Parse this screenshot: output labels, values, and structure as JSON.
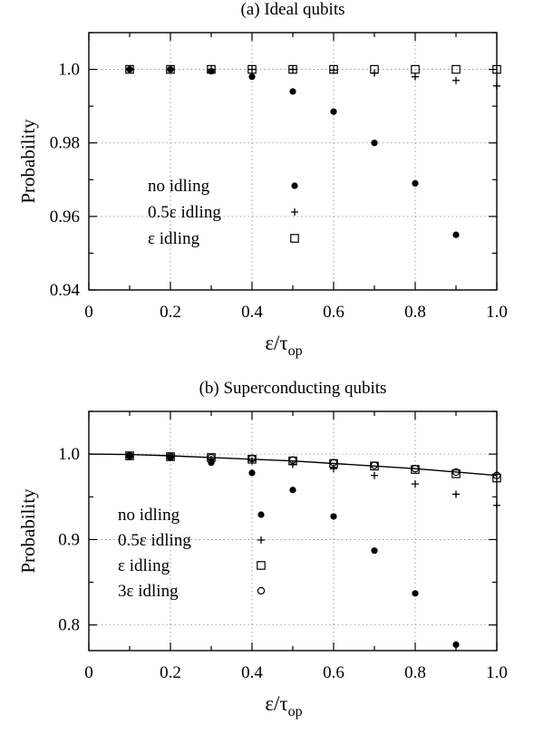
{
  "chart_data": [
    {
      "type": "scatter",
      "title": "(a) Ideal qubits",
      "xlabel": "ε/τ",
      "xlabel_sub": "op",
      "ylabel": "Probability",
      "xlim": [
        0,
        1.0
      ],
      "ylim": [
        0.94,
        1.01
      ],
      "xticks": [
        0,
        0.2,
        0.4,
        0.6,
        0.8,
        1.0
      ],
      "xtick_labels": [
        "0",
        "0.2",
        "0.4",
        "0.6",
        "0.8",
        "1.0"
      ],
      "yticks": [
        0.94,
        0.96,
        0.98,
        1.0
      ],
      "ytick_labels": [
        "0.94",
        "0.96",
        "0.98",
        "1.0"
      ],
      "grid": true,
      "legend_position": "lower-left",
      "series": [
        {
          "name": "no idling",
          "marker": "filled-circle",
          "x": [
            0.1,
            0.2,
            0.3,
            0.4,
            0.5,
            0.6,
            0.7,
            0.8,
            0.9
          ],
          "y": [
            1.0,
            1.0,
            0.9995,
            0.998,
            0.994,
            0.9885,
            0.98,
            0.969,
            0.955
          ]
        },
        {
          "name": "0.5ε idling",
          "marker": "plus",
          "x": [
            0.1,
            0.2,
            0.3,
            0.4,
            0.5,
            0.6,
            0.7,
            0.8,
            0.9,
            1.0
          ],
          "y": [
            1.0,
            1.0,
            1.0,
            1.0,
            1.0,
            0.9998,
            0.999,
            0.998,
            0.997,
            0.9955
          ]
        },
        {
          "name": "ε idling",
          "marker": "open-square",
          "x": [
            0.1,
            0.2,
            0.3,
            0.4,
            0.5,
            0.6,
            0.7,
            0.8,
            0.9,
            1.0
          ],
          "y": [
            1.0,
            1.0,
            1.0,
            1.0,
            1.0,
            1.0,
            1.0,
            1.0,
            1.0,
            1.0
          ]
        }
      ]
    },
    {
      "type": "scatter",
      "title": "(b) Superconducting qubits",
      "xlabel": "ε/τ",
      "xlabel_sub": "op",
      "ylabel": "Probability",
      "xlim": [
        0,
        1.0
      ],
      "ylim": [
        0.77,
        1.05
      ],
      "xticks": [
        0,
        0.2,
        0.4,
        0.6,
        0.8,
        1.0
      ],
      "xtick_labels": [
        "0",
        "0.2",
        "0.4",
        "0.6",
        "0.8",
        "1.0"
      ],
      "yticks": [
        0.8,
        0.9,
        1.0
      ],
      "ytick_labels": [
        "0.8",
        "0.9",
        "1.0"
      ],
      "grid": true,
      "legend_position": "lower-left",
      "series": [
        {
          "name": "no idling",
          "marker": "filled-circle",
          "x": [
            0.1,
            0.2,
            0.3,
            0.4,
            0.5,
            0.6,
            0.7,
            0.8,
            0.9
          ],
          "y": [
            0.998,
            0.996,
            0.99,
            0.978,
            0.958,
            0.927,
            0.887,
            0.837,
            0.777
          ]
        },
        {
          "name": "0.5ε idling",
          "marker": "plus",
          "x": [
            0.1,
            0.2,
            0.3,
            0.4,
            0.5,
            0.6,
            0.7,
            0.8,
            0.9,
            1.0
          ],
          "y": [
            0.998,
            0.997,
            0.994,
            0.992,
            0.988,
            0.983,
            0.975,
            0.965,
            0.953,
            0.94
          ]
        },
        {
          "name": "ε idling",
          "marker": "open-square",
          "x": [
            0.1,
            0.2,
            0.3,
            0.4,
            0.5,
            0.6,
            0.7,
            0.8,
            0.9,
            1.0
          ],
          "y": [
            0.998,
            0.997,
            0.996,
            0.994,
            0.992,
            0.989,
            0.986,
            0.982,
            0.977,
            0.972
          ]
        },
        {
          "name": "3ε idling",
          "marker": "open-circle",
          "x": [
            0.1,
            0.2,
            0.3,
            0.4,
            0.5,
            0.6,
            0.7,
            0.8,
            0.9,
            1.0
          ],
          "y": [
            0.998,
            0.997,
            0.996,
            0.995,
            0.993,
            0.99,
            0.987,
            0.983,
            0.979,
            0.975
          ]
        },
        {
          "name": "",
          "marker": "line",
          "x": [
            0,
            0.1,
            0.2,
            0.3,
            0.4,
            0.5,
            0.6,
            0.7,
            0.8,
            0.9,
            1.0
          ],
          "y": [
            1.0,
            0.9995,
            0.998,
            0.996,
            0.994,
            0.992,
            0.989,
            0.986,
            0.983,
            0.979,
            0.975
          ]
        }
      ]
    }
  ]
}
